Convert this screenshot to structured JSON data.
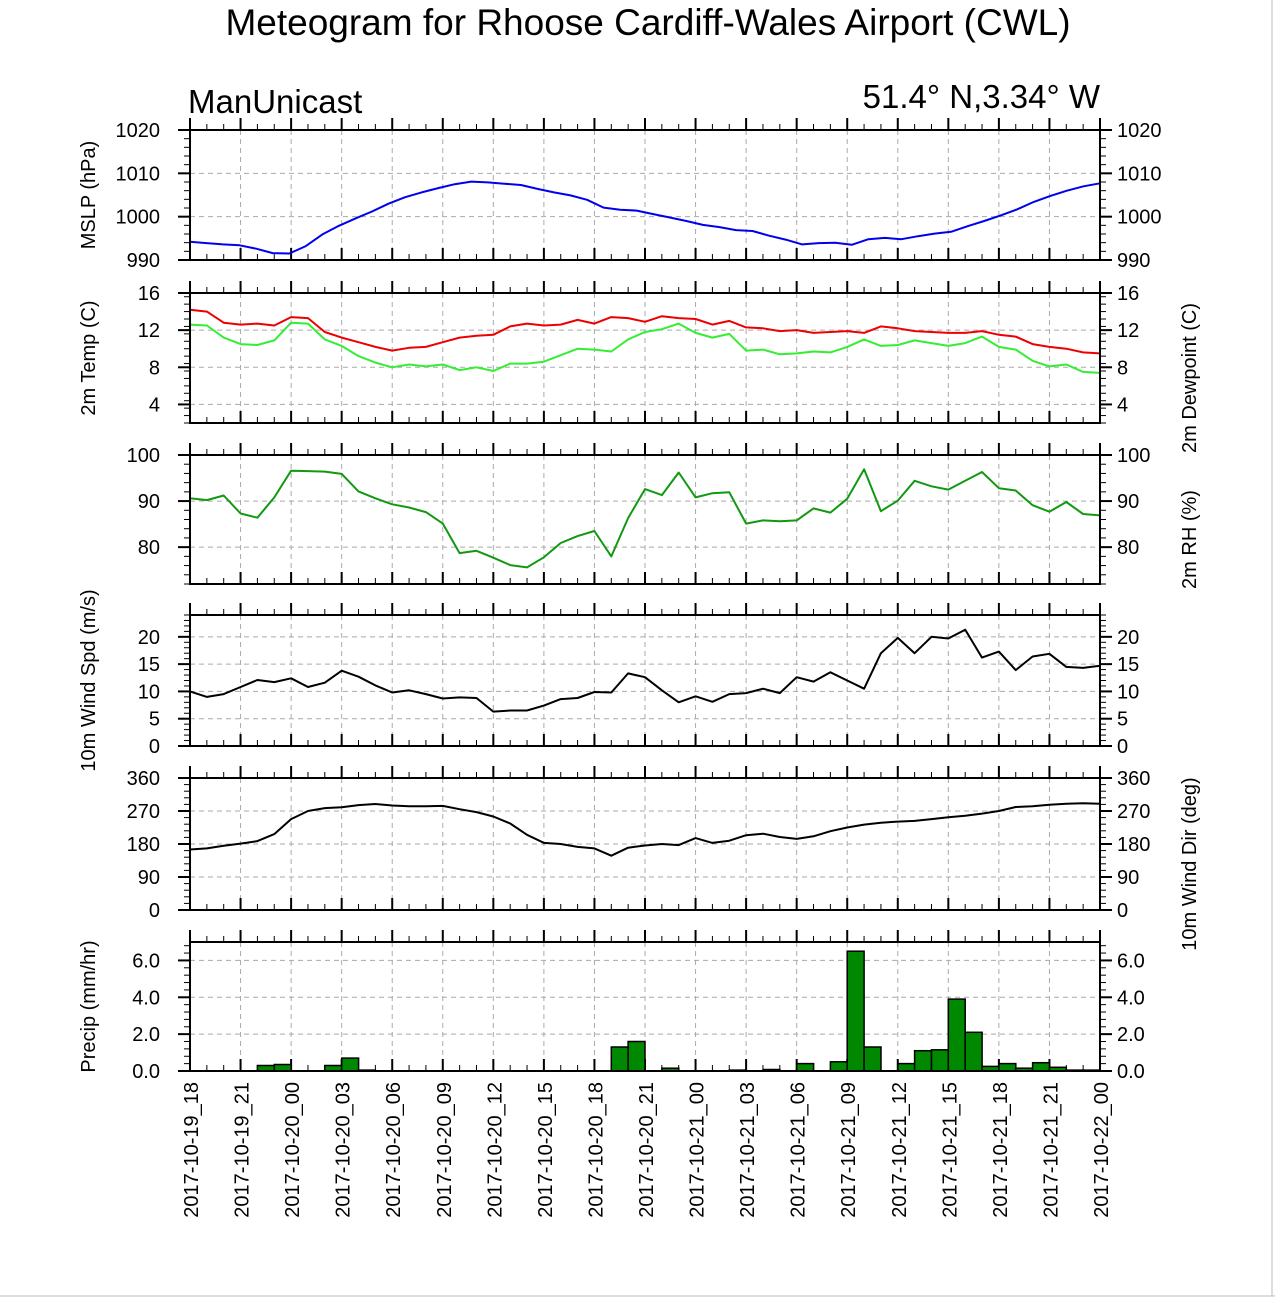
{
  "title": "Meteogram for Rhoose Cardiff-Wales Airport (CWL)",
  "model": "ManUnicast",
  "location": "51.4° N,3.34° W",
  "colors": {
    "mslp": "#0000ee",
    "temp": "#ee0000",
    "dewpoint": "#33ee33",
    "rh": "#119911",
    "wind": "#000000",
    "precip_fill": "#008800",
    "grid": "#aaaaaa"
  },
  "chart_data": [
    {
      "id": "mslp",
      "type": "line",
      "ylabel": "MSLP (hPa)",
      "ylim": [
        990,
        1020
      ],
      "yticks": [
        "1020",
        "1010",
        "1000",
        "990"
      ],
      "ytick_values": [
        1020,
        1010,
        1000,
        990
      ],
      "right_ticks": true,
      "grid": true,
      "series": [
        {
          "color_key": "mslp",
          "values": [
            994.2,
            993.9,
            993.6,
            993.4,
            992.6,
            991.6,
            991.5,
            993.2,
            995.9,
            997.9,
            999.6,
            1001.2,
            1003.0,
            1004.5,
            1005.6,
            1006.6,
            1007.5,
            1008.1,
            1007.9,
            1007.6,
            1007.3,
            1006.4,
            1005.6,
            1004.9,
            1003.9,
            1002.1,
            1001.6,
            1001.4,
            1000.6,
            999.8,
            999.0,
            998.1,
            997.6,
            996.9,
            996.7,
            995.6,
            994.7,
            993.6,
            993.9,
            994.0,
            993.5,
            994.8,
            995.1,
            994.8,
            995.5,
            996.1,
            996.5,
            997.8,
            999.0,
            1000.3,
            1001.7,
            1003.4,
            1004.8,
            1006.0,
            1007.0,
            1007.7
          ]
        }
      ]
    },
    {
      "id": "temp",
      "type": "line",
      "ylabel": "2m Temp (C)",
      "ylabel_right": "2m Dewpoint (C)",
      "ylim": [
        2,
        16
      ],
      "yticks": [
        "16",
        "12",
        "8",
        "4"
      ],
      "ytick_values": [
        16,
        12,
        8,
        4
      ],
      "right_ticks": true,
      "grid": true,
      "series": [
        {
          "color_key": "temp",
          "values": [
            14.2,
            14.0,
            12.8,
            12.6,
            12.7,
            12.5,
            13.4,
            13.3,
            11.8,
            11.2,
            10.7,
            10.2,
            9.8,
            10.1,
            10.2,
            10.7,
            11.2,
            11.4,
            11.5,
            12.4,
            12.7,
            12.5,
            12.6,
            13.1,
            12.7,
            13.4,
            13.3,
            12.9,
            13.5,
            13.3,
            13.2,
            12.6,
            13.0,
            12.3,
            12.2,
            11.9,
            12.0,
            11.7,
            11.8,
            11.9,
            11.7,
            12.4,
            12.2,
            11.9,
            11.8,
            11.7,
            11.7,
            11.9,
            11.5,
            11.3,
            10.5,
            10.2,
            10.0,
            9.6,
            9.5
          ]
        },
        {
          "color_key": "dewpoint",
          "values": [
            12.6,
            12.5,
            11.2,
            10.5,
            10.4,
            10.9,
            12.8,
            12.7,
            11.0,
            10.3,
            9.2,
            8.5,
            8.0,
            8.3,
            8.1,
            8.3,
            7.7,
            8.0,
            7.6,
            8.4,
            8.4,
            8.6,
            9.3,
            10.0,
            9.9,
            9.7,
            11.0,
            11.8,
            12.1,
            12.7,
            11.7,
            11.2,
            11.6,
            9.8,
            9.9,
            9.4,
            9.5,
            9.7,
            9.6,
            10.2,
            11.0,
            10.3,
            10.4,
            10.9,
            10.6,
            10.3,
            10.6,
            11.3,
            10.2,
            9.9,
            8.7,
            8.1,
            8.3,
            7.5,
            7.4
          ]
        }
      ]
    },
    {
      "id": "rh",
      "type": "line",
      "ylabel_right": "2m RH (%)",
      "ylim": [
        72,
        100
      ],
      "yticks": [
        "100",
        "90",
        "80"
      ],
      "ytick_values": [
        100,
        90,
        80
      ],
      "right_ticks": true,
      "grid": true,
      "series": [
        {
          "color_key": "rh",
          "values": [
            90.6,
            90.2,
            91.2,
            87.3,
            86.4,
            90.8,
            96.6,
            96.5,
            96.4,
            95.9,
            92.1,
            90.6,
            89.3,
            88.6,
            87.6,
            85.1,
            78.7,
            79.2,
            77.7,
            76.1,
            75.6,
            77.8,
            80.9,
            82.4,
            83.5,
            78.0,
            86.3,
            92.6,
            91.3,
            96.2,
            90.8,
            91.7,
            91.9,
            85.1,
            85.8,
            85.6,
            85.8,
            88.4,
            87.5,
            90.5,
            96.9,
            87.8,
            90.1,
            94.4,
            93.2,
            92.5,
            94.4,
            96.3,
            92.8,
            92.3,
            89.1,
            87.7,
            89.8,
            87.2,
            86.9
          ]
        }
      ]
    },
    {
      "id": "wind",
      "type": "line",
      "ylabel": "10m Wind Spd (m/s)",
      "ylim": [
        0,
        24
      ],
      "yticks": [
        "20",
        "15",
        "10",
        "5",
        "0"
      ],
      "ytick_values": [
        20,
        15,
        10,
        5,
        0
      ],
      "right_ticks": true,
      "grid": true,
      "series": [
        {
          "color_key": "wind",
          "values": [
            10.0,
            9.0,
            9.5,
            10.8,
            12.1,
            11.7,
            12.4,
            10.8,
            11.6,
            13.8,
            12.7,
            11.1,
            9.8,
            10.2,
            9.5,
            8.7,
            8.9,
            8.8,
            6.3,
            6.5,
            6.5,
            7.4,
            8.6,
            8.8,
            9.9,
            9.8,
            13.3,
            12.6,
            10.2,
            8.0,
            9.1,
            8.1,
            9.5,
            9.7,
            10.5,
            9.7,
            12.6,
            11.8,
            13.5,
            12.0,
            10.5,
            17.0,
            19.8,
            17.0,
            20.0,
            19.7,
            21.3,
            16.2,
            17.3,
            13.9,
            16.4,
            16.9,
            14.5,
            14.3,
            14.7
          ]
        }
      ]
    },
    {
      "id": "wdir",
      "type": "line",
      "ylabel_right": "10m Wind Dir (deg)",
      "ylim": [
        0,
        360
      ],
      "yticks": [
        "360",
        "270",
        "180",
        "90",
        "0"
      ],
      "ytick_values": [
        360,
        270,
        180,
        90,
        0
      ],
      "right_ticks": true,
      "grid": true,
      "series": [
        {
          "color_key": "wind",
          "values": [
            165,
            168,
            175,
            181,
            188,
            207,
            248,
            270,
            278,
            280,
            286,
            289,
            285,
            283,
            283,
            284,
            275,
            267,
            255,
            236,
            205,
            183,
            180,
            172,
            168,
            148,
            170,
            176,
            180,
            177,
            196,
            183,
            189,
            204,
            208,
            199,
            194,
            201,
            215,
            225,
            233,
            238,
            241,
            243,
            248,
            253,
            257,
            263,
            270,
            281,
            283,
            287,
            290,
            291,
            290
          ]
        }
      ]
    },
    {
      "id": "precip",
      "type": "bar",
      "ylabel": "Precip (mm/hr)",
      "ylim": [
        0,
        7
      ],
      "yticks": [
        "6.0",
        "4.0",
        "2.0",
        "0.0"
      ],
      "ytick_values": [
        6,
        4,
        2,
        0
      ],
      "right_ticks": true,
      "grid": true,
      "series": [
        {
          "color_key": "precip_fill",
          "values": [
            0,
            0,
            0,
            0,
            0.3,
            0.35,
            0,
            0,
            0.3,
            0.7,
            0.05,
            0,
            0,
            0,
            0,
            0,
            0,
            0,
            0,
            0,
            0,
            0,
            0,
            0,
            0,
            1.3,
            1.6,
            0,
            0.15,
            0,
            0,
            0,
            0.05,
            0,
            0.08,
            0,
            0.4,
            0,
            0.5,
            6.5,
            1.3,
            0,
            0.4,
            1.1,
            1.15,
            3.9,
            2.1,
            0.25,
            0.4,
            0.15,
            0.45,
            0.2,
            0.05,
            0.05
          ]
        }
      ]
    }
  ],
  "x_labels": [
    "2017-10-19_18",
    "2017-10-19_21",
    "2017-10-20_00",
    "2017-10-20_03",
    "2017-10-20_06",
    "2017-10-20_09",
    "2017-10-20_12",
    "2017-10-20_15",
    "2017-10-20_18",
    "2017-10-20_21",
    "2017-10-21_00",
    "2017-10-21_03",
    "2017-10-21_06",
    "2017-10-21_09",
    "2017-10-21_12",
    "2017-10-21_15",
    "2017-10-21_18",
    "2017-10-21_21",
    "2017-10-22_00"
  ]
}
